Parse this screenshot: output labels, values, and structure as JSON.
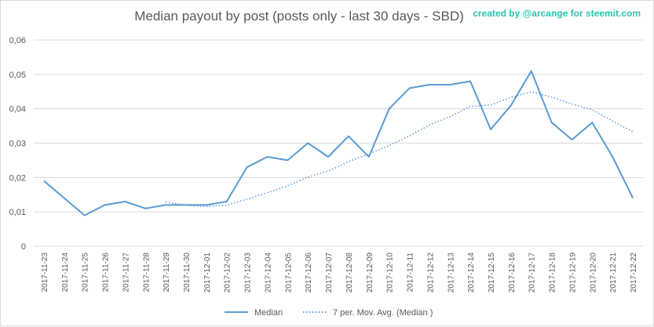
{
  "chart_data": {
    "type": "line",
    "title": "Median payout by post (posts only - last 30 days - SBD)",
    "credit": "created by @arcange for steemit.com",
    "xlabel": "",
    "ylabel": "",
    "ylim": [
      0,
      0.06
    ],
    "yticks": [
      "0",
      "0,01",
      "0,02",
      "0,03",
      "0,04",
      "0,05",
      "0,06"
    ],
    "grid": true,
    "legend_position": "bottom",
    "categories": [
      "2017-11-23",
      "2017-11-24",
      "2017-11-25",
      "2017-11-26",
      "2017-11-27",
      "2017-11-28",
      "2017-11-29",
      "2017-11-30",
      "2017-12-01",
      "2017-12-02",
      "2017-12-03",
      "2017-12-04",
      "2017-12-05",
      "2017-12-06",
      "2017-12-07",
      "2017-12-08",
      "2017-12-09",
      "2017-12-10",
      "2017-12-11",
      "2017-12-12",
      "2017-12-13",
      "2017-12-14",
      "2017-12-15",
      "2017-12-16",
      "2017-12-17",
      "2017-12-18",
      "2017-12-19",
      "2017-12-20",
      "2017-12-21",
      "2017-12-22"
    ],
    "series": [
      {
        "name": "Median",
        "style": "solid",
        "color": "#5b9bd5",
        "values": [
          0.019,
          0.014,
          0.009,
          0.012,
          0.013,
          0.011,
          0.012,
          0.012,
          0.012,
          0.013,
          0.023,
          0.026,
          0.025,
          0.03,
          0.026,
          0.032,
          0.026,
          0.04,
          0.046,
          0.047,
          0.047,
          0.048,
          0.034,
          0.041,
          0.051,
          0.036,
          0.031,
          0.036,
          0.026,
          0.014
        ]
      },
      {
        "name": "7 per. Mov. Avg. (Median )",
        "style": "dotted",
        "color": "#5b9bd5",
        "values": [
          null,
          null,
          null,
          null,
          null,
          null,
          0.0129,
          0.0119,
          0.0116,
          0.0119,
          0.0137,
          0.0156,
          0.0176,
          0.0201,
          0.0219,
          0.0246,
          0.0269,
          0.0293,
          0.0321,
          0.0353,
          0.0377,
          0.0407,
          0.0411,
          0.0433,
          0.0449,
          0.0434,
          0.0414,
          0.0397,
          0.0364,
          0.0333
        ]
      }
    ]
  }
}
